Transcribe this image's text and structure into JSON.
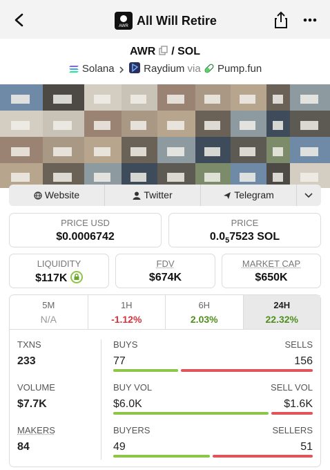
{
  "header": {
    "title": "All Will Retire",
    "logo": "AWR"
  },
  "pair": {
    "base": "AWR",
    "separator": "/",
    "quote": "SOL"
  },
  "dex": {
    "chain": "Solana",
    "exchange": "Raydium",
    "via": "via",
    "launchpad": "Pump.fun"
  },
  "links": [
    "Website",
    "Twitter",
    "Telegram"
  ],
  "price_usd": {
    "label": "PRICE USD",
    "value": "$0.0006742"
  },
  "price": {
    "label": "PRICE",
    "value_prefix": "0.0",
    "value_subscript": "5",
    "value_suffix": "7523 SOL"
  },
  "liquidity": {
    "label": "LIQUIDITY",
    "value": "$117K"
  },
  "fdv": {
    "label": "FDV",
    "value": "$674K"
  },
  "market_cap": {
    "label": "MARKET CAP",
    "value": "$650K"
  },
  "timeframes": [
    {
      "label": "5M",
      "change": "N/A",
      "color": "#999999",
      "active": false
    },
    {
      "label": "1H",
      "change": "-1.12%",
      "color": "#d3333b",
      "active": false
    },
    {
      "label": "6H",
      "change": "2.03%",
      "color": "#4f8f1d",
      "active": false
    },
    {
      "label": "24H",
      "change": "22.32%",
      "color": "#4f8f1d",
      "active": true
    }
  ],
  "stats": {
    "txns": {
      "label": "TXNS",
      "value": 233
    },
    "buys": {
      "label": "BUYS",
      "value": 77
    },
    "sells": {
      "label": "SELLS",
      "value": 156
    },
    "volume": {
      "label": "VOLUME",
      "value": "$7.7K"
    },
    "buy_vol": {
      "label": "BUY VOL",
      "value": {
        "value": 6000,
        "label": "$6.0K"
      }
    },
    "sell_vol": {
      "label": "SELL VOL",
      "value": {
        "value": 1600,
        "label": "$1.6K"
      }
    },
    "makers": {
      "label": "MAKERS",
      "value": 84
    },
    "buyers": {
      "label": "BUYERS",
      "value": 49
    },
    "sellers": {
      "label": "SELLERS",
      "value": 51
    }
  },
  "bar_colors": {
    "buy": "#8cc548",
    "sell": "#e0545a"
  }
}
